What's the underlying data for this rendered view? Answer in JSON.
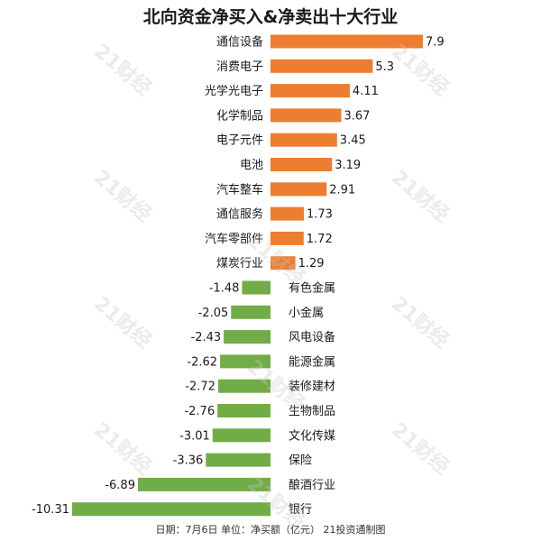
{
  "header": {
    "title": "北向资金净买入&净卖出十大行业"
  },
  "footer": {
    "note": "日期：7月6日  单位：净买额（亿元）  21投资通制图"
  },
  "watermark": {
    "text": "21财经"
  },
  "colors": {
    "positive": "#ED7D31",
    "negative": "#70AD47",
    "text": "#1a1a1a"
  },
  "chart_data": {
    "type": "bar",
    "orientation": "horizontal",
    "title": "北向资金净买入&净卖出十大行业",
    "categories": [
      "通信设备",
      "消费电子",
      "光学光电子",
      "化学制品",
      "电子元件",
      "电池",
      "汽车整车",
      "通信服务",
      "汽车零部件",
      "煤炭行业",
      "有色金属",
      "小金属",
      "风电设备",
      "能源金属",
      "装修建材",
      "生物制品",
      "文化传媒",
      "保险",
      "酿酒行业",
      "银行"
    ],
    "values": [
      7.9,
      5.3,
      4.11,
      3.67,
      3.45,
      3.19,
      2.91,
      1.73,
      1.72,
      1.29,
      -1.48,
      -2.05,
      -2.43,
      -2.62,
      -2.72,
      -2.76,
      -3.01,
      -3.36,
      -6.89,
      -10.31
    ],
    "value_labels": [
      "7.9",
      "5.3",
      "4.11",
      "3.67",
      "3.45",
      "3.19",
      "2.91",
      "1.73",
      "1.72",
      "1.29",
      "-1.48",
      "-2.05",
      "-2.43",
      "-2.62",
      "-2.72",
      "-2.76",
      "-3.01",
      "-3.36",
      "-6.89",
      "-10.31"
    ],
    "xlim": [
      -10.31,
      7.9
    ],
    "grid": false,
    "legend": "none"
  }
}
